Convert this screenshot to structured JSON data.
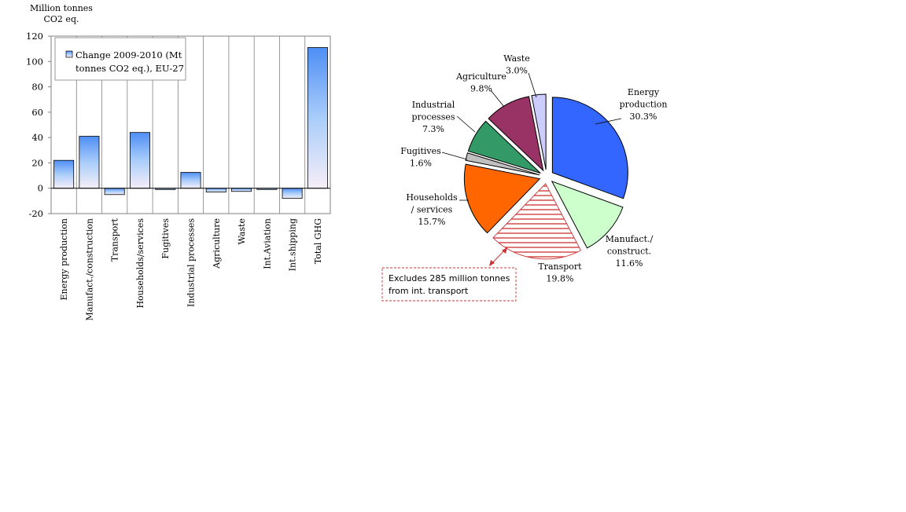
{
  "chart_data": [
    {
      "type": "bar",
      "ylabel_lines": [
        "Million tonnes",
        "CO2 eq."
      ],
      "categories": [
        "Energy production",
        "Manufact./construction",
        "Transport",
        "Households/services",
        "Fugitives",
        "Industrial processes",
        "Agriculture",
        "Waste",
        "Int.Aviation",
        "Int.shipping",
        "Total GHG"
      ],
      "series": [
        {
          "name_lines": [
            "Change 2009-2010 (Mt",
            "tonnes CO2 eq.), EU-27"
          ],
          "values": [
            22,
            41,
            -5,
            44,
            -1,
            12.5,
            -3,
            -2.5,
            -1,
            -8,
            111
          ]
        }
      ],
      "ylim": [
        -20,
        120
      ],
      "yticks": [
        -20,
        0,
        20,
        40,
        60,
        80,
        100,
        120
      ],
      "legend_position": "top-left",
      "grid": "vertical category separators",
      "bar_gradient": [
        "#4e8ef5",
        "#a9cdfa",
        "#f6eef8"
      ]
    },
    {
      "type": "pie",
      "slices": [
        {
          "name_lines": [
            "Energy",
            "production"
          ],
          "pct_label": "30.3%",
          "value": 30.3,
          "color": "#3366ff",
          "hatched": false
        },
        {
          "name_lines": [
            "Manufact./",
            "construct."
          ],
          "pct_label": "11.6%",
          "value": 11.6,
          "color": "#ccffcc",
          "hatched": false
        },
        {
          "name_lines": [
            "Transport"
          ],
          "pct_label": "19.8%",
          "value": 19.8,
          "color": "#ffffff",
          "hatched": true,
          "hatch_color": "#cc3333"
        },
        {
          "name_lines": [
            "Households",
            "/ services"
          ],
          "pct_label": "15.7%",
          "value": 15.7,
          "color": "#ff6600",
          "hatched": false
        },
        {
          "name_lines": [
            "Fugitives"
          ],
          "pct_label": "1.6%",
          "value": 1.6,
          "color": "#c0c0c0",
          "hatched": false
        },
        {
          "name_lines": [
            "Industrial",
            "processes"
          ],
          "pct_label": "7.3%",
          "value": 7.3,
          "color": "#339966",
          "hatched": false
        },
        {
          "name_lines": [
            "Agriculture"
          ],
          "pct_label": "9.8%",
          "value": 9.8,
          "color": "#993366",
          "hatched": false
        },
        {
          "name_lines": [
            "Waste"
          ],
          "pct_label": "3.0%",
          "value": 3.0,
          "color": "#ccccff",
          "hatched": false
        }
      ],
      "annotation_lines": [
        "Excludes 285 million tonnes",
        "from int. transport"
      ],
      "annotation_color": "#cc3333"
    }
  ]
}
